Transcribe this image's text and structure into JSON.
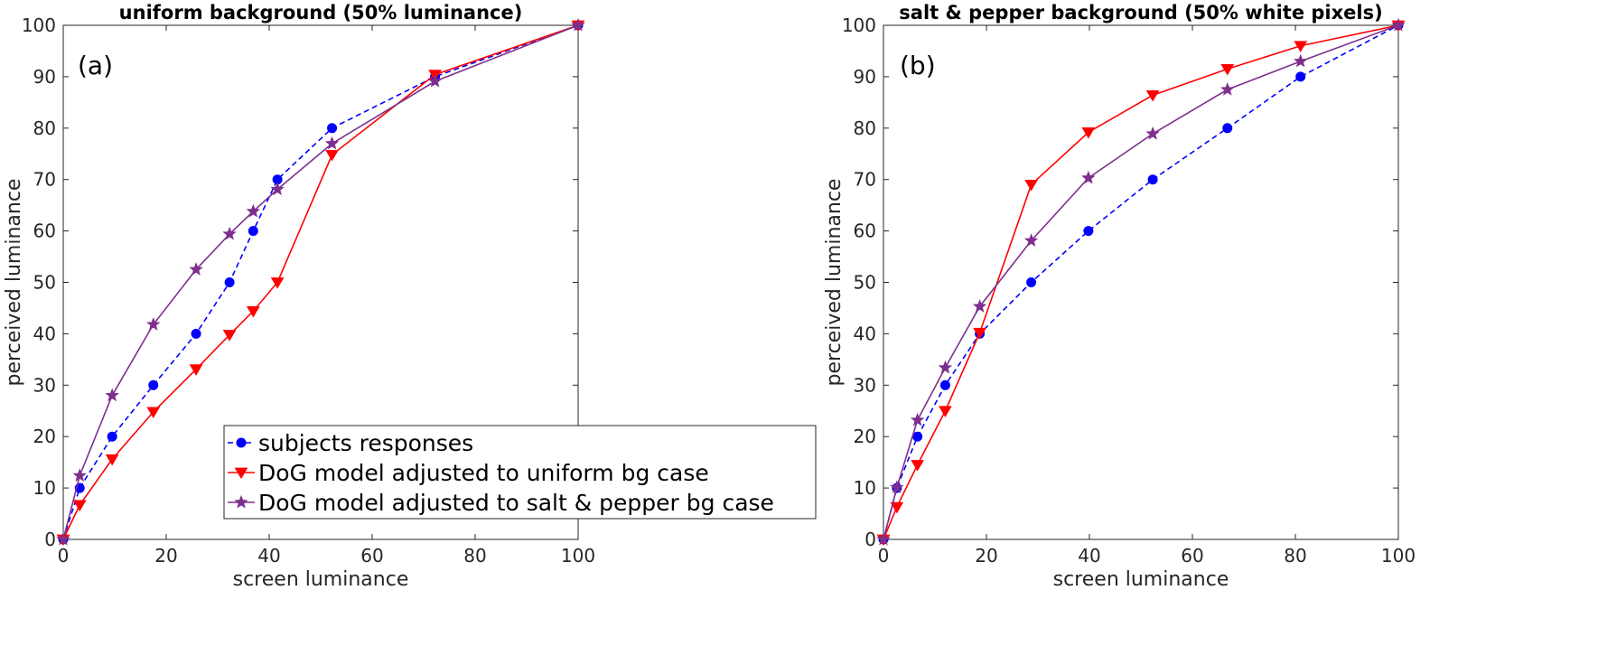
{
  "chart_data": [
    {
      "type": "line",
      "title": "uniform background (50% luminance)",
      "panel_label": "(a)",
      "xlabel": "screen luminance",
      "ylabel": "perceived luminance",
      "xlim": [
        0,
        100
      ],
      "ylim": [
        0,
        100
      ],
      "xticks": [
        0,
        20,
        40,
        60,
        80,
        100
      ],
      "yticks": [
        0,
        10,
        20,
        30,
        40,
        50,
        60,
        70,
        80,
        90,
        100
      ],
      "grid": false,
      "legend_position": "lower-right",
      "series": [
        {
          "name": "subjects responses",
          "color": "#0000ff",
          "line_style": "dashed",
          "marker": "circle",
          "x": [
            0,
            3.2,
            9.5,
            17.5,
            25.8,
            32.3,
            36.9,
            41.6,
            52.2,
            72.2,
            100
          ],
          "y": [
            0,
            10,
            20,
            30,
            40,
            50,
            60,
            70,
            80,
            90,
            100
          ]
        },
        {
          "name": "DoG model adjusted to uniform bg case",
          "color": "#ff0000",
          "line_style": "solid",
          "marker": "triangle-down",
          "x": [
            0,
            3.2,
            9.5,
            17.5,
            25.8,
            32.3,
            36.9,
            41.6,
            52.2,
            72.2,
            100
          ],
          "y": [
            0,
            6.7,
            15.6,
            24.8,
            33.1,
            39.8,
            44.4,
            50,
            74.8,
            90.4,
            100
          ]
        },
        {
          "name": "DoG model adjusted to salt & pepper bg case",
          "color": "#7e2f8e",
          "line_style": "solid",
          "marker": "star",
          "x": [
            0,
            3.2,
            9.5,
            17.5,
            25.8,
            32.3,
            36.9,
            41.6,
            52.2,
            72.2,
            100
          ],
          "y": [
            0,
            12.4,
            28,
            41.8,
            52.5,
            59.4,
            63.8,
            68.1,
            77,
            89.1,
            100
          ]
        }
      ]
    },
    {
      "type": "line",
      "title": "salt & pepper background (50% white pixels)",
      "panel_label": "(b)",
      "xlabel": "screen luminance",
      "ylabel": "perceived luminance",
      "xlim": [
        0,
        100
      ],
      "ylim": [
        0,
        100
      ],
      "xticks": [
        0,
        20,
        40,
        60,
        80,
        100
      ],
      "yticks": [
        0,
        10,
        20,
        30,
        40,
        50,
        60,
        70,
        80,
        90,
        100
      ],
      "grid": false,
      "legend_position": "none",
      "series": [
        {
          "color": "#0000ff",
          "line_style": "dashed",
          "marker": "circle",
          "x": [
            0,
            2.6,
            6.6,
            12,
            18.7,
            28.7,
            39.8,
            52.3,
            66.8,
            81,
            100
          ],
          "y": [
            0,
            10,
            20,
            30,
            40,
            50,
            60,
            70,
            80,
            90,
            100
          ]
        },
        {
          "color": "#ff0000",
          "line_style": "solid",
          "marker": "triangle-down",
          "x": [
            0,
            2.6,
            6.6,
            12,
            18.7,
            28.7,
            39.8,
            52.3,
            66.8,
            81,
            100
          ],
          "y": [
            0,
            6.3,
            14.5,
            25,
            40.2,
            69,
            79.2,
            86.4,
            91.5,
            96,
            100
          ]
        },
        {
          "color": "#7e2f8e",
          "line_style": "solid",
          "marker": "star",
          "x": [
            0,
            2.6,
            6.6,
            12,
            18.7,
            28.7,
            39.8,
            52.3,
            66.8,
            81,
            100
          ],
          "y": [
            0,
            10.1,
            23.2,
            33.4,
            45.3,
            58.1,
            70.3,
            78.9,
            87.5,
            93,
            100
          ]
        }
      ]
    }
  ]
}
